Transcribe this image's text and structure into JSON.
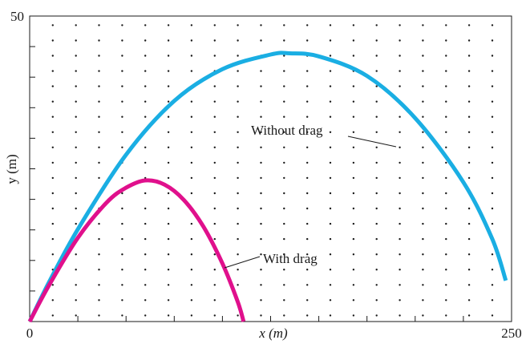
{
  "chart_data": {
    "type": "line",
    "title": "",
    "xlabel": "x (m)",
    "ylabel": "y (m)",
    "xlim": [
      0,
      250
    ],
    "ylim": [
      0,
      50
    ],
    "x_tick_labels": [
      "0",
      "250"
    ],
    "y_tick_labels": [
      "50"
    ],
    "grid": "dotted",
    "series": [
      {
        "name": "Without drag",
        "color": "#1aaee3",
        "x": [
          0,
          10,
          25,
          50,
          75,
          100,
          125,
          135,
          150,
          175,
          200,
          225,
          240,
          247
        ],
        "y": [
          0,
          6.4,
          15.1,
          27.3,
          36.1,
          41.3,
          43.7,
          43.9,
          43.4,
          40.2,
          33.3,
          22.8,
          13.5,
          6.7
        ]
      },
      {
        "name": "With drag",
        "color": "#e0108c",
        "x": [
          0,
          10,
          25,
          40,
          50,
          60,
          70,
          80,
          90,
          100,
          108,
          111
        ],
        "y": [
          0,
          5.9,
          13.7,
          19.5,
          21.9,
          23.1,
          22.4,
          19.9,
          15.6,
          9.5,
          3.2,
          0
        ]
      }
    ],
    "annotations": [
      {
        "text": "Without drag",
        "series": "Without drag"
      },
      {
        "text": "With drag",
        "series": "With drag"
      }
    ]
  }
}
